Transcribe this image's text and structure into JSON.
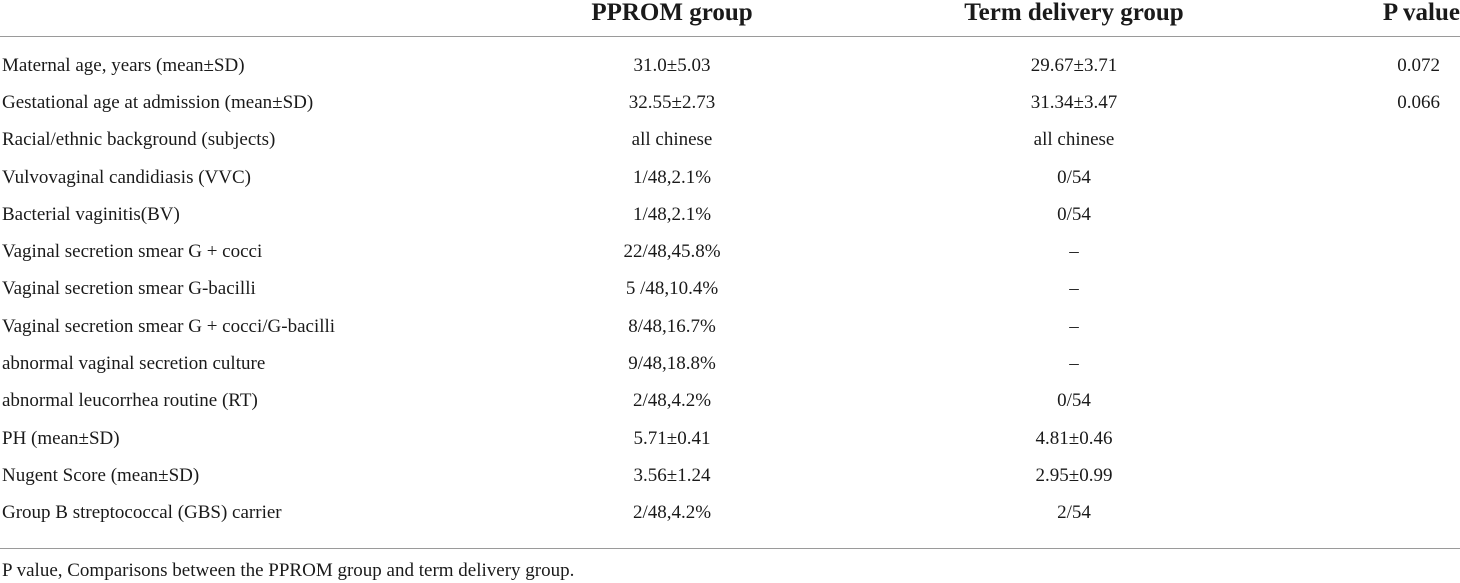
{
  "table": {
    "headers": {
      "label": "",
      "pprom": "PPROM group",
      "term": "Term delivery group",
      "p": "P value"
    },
    "rows": [
      {
        "label": "Maternal age, years (mean±SD)",
        "pprom": "31.0±5.03",
        "term": "29.67±3.71",
        "p": "0.072"
      },
      {
        "label": "Gestational age at admission (mean±SD)",
        "pprom": "32.55±2.73",
        "term": "31.34±3.47",
        "p": "0.066"
      },
      {
        "label": "Racial/ethnic background (subjects)",
        "pprom": "all chinese",
        "term": "all chinese",
        "p": ""
      },
      {
        "label": "Vulvovaginal candidiasis (VVC)",
        "pprom": "1/48,2.1%",
        "term": "0/54",
        "p": ""
      },
      {
        "label": "Bacterial vaginitis(BV)",
        "pprom": "1/48,2.1%",
        "term": "0/54",
        "p": ""
      },
      {
        "label": "Vaginal secretion smear G + cocci",
        "pprom": "22/48,45.8%",
        "term": "–",
        "p": ""
      },
      {
        "label": "Vaginal secretion smear G-bacilli",
        "pprom": "5 /48,10.4%",
        "term": "–",
        "p": ""
      },
      {
        "label": "Vaginal secretion smear G + cocci/G-bacilli",
        "pprom": "8/48,16.7%",
        "term": "–",
        "p": ""
      },
      {
        "label": "abnormal vaginal secretion culture",
        "pprom": "9/48,18.8%",
        "term": "–",
        "p": ""
      },
      {
        "label": "abnormal leucorrhea routine (RT)",
        "pprom": "2/48,4.2%",
        "term": "0/54",
        "p": ""
      },
      {
        "label": "PH (mean±SD)",
        "pprom": "5.71±0.41",
        "term": "4.81±0.46",
        "p": ""
      },
      {
        "label": "Nugent Score (mean±SD)",
        "pprom": "3.56±1.24",
        "term": "2.95±0.99",
        "p": ""
      },
      {
        "label": "Group B streptococcal (GBS) carrier",
        "pprom": "2/48,4.2%",
        "term": "2/54",
        "p": ""
      }
    ]
  },
  "footnote": "P value, Comparisons between the PPROM group and term delivery group."
}
